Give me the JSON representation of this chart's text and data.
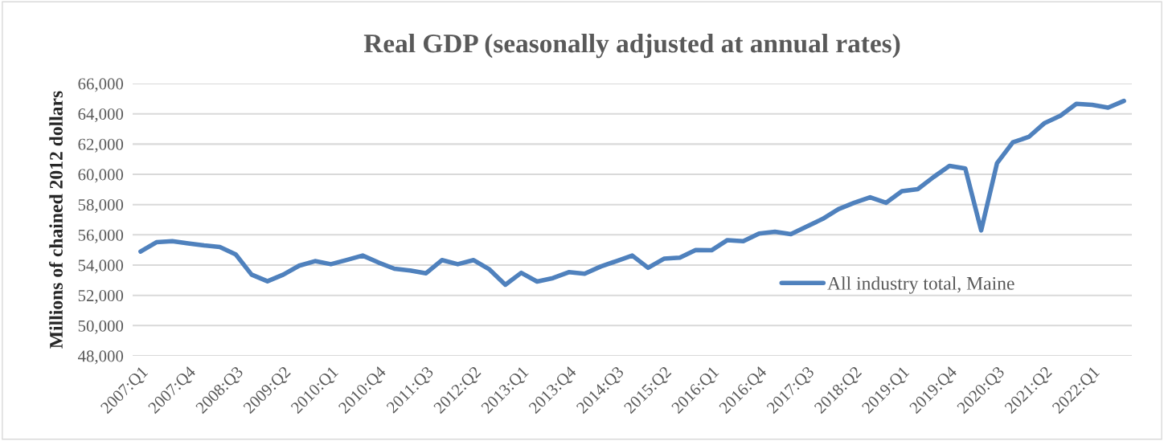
{
  "chart_data": {
    "type": "line",
    "title": "Real GDP (seasonally adjusted at annual rates)",
    "ylabel": "Millions of chained 2012 dollars",
    "categories": [
      "2007:Q1",
      null,
      null,
      "2007:Q4",
      null,
      null,
      "2008:Q3",
      null,
      null,
      "2009:Q2",
      null,
      null,
      "2010:Q1",
      null,
      null,
      "2010:Q4",
      null,
      null,
      "2011:Q3",
      null,
      null,
      "2012:Q2",
      null,
      null,
      "2013:Q1",
      null,
      null,
      "2013:Q4",
      null,
      null,
      "2014:Q3",
      null,
      null,
      "2015:Q2",
      null,
      null,
      "2016:Q1",
      null,
      null,
      "2016:Q4",
      null,
      null,
      "2017:Q3",
      null,
      null,
      "2018:Q2",
      null,
      null,
      "2019:Q1",
      null,
      null,
      "2019:Q4",
      null,
      null,
      "2020:Q3",
      null,
      null,
      "2021:Q2",
      null,
      null,
      "2022:Q1",
      null,
      null
    ],
    "series": [
      {
        "name": "All industry total, Maine",
        "color": "#4f81bd",
        "values": [
          54900,
          55510,
          55580,
          55440,
          55300,
          55190,
          54700,
          53370,
          52930,
          53370,
          53960,
          54260,
          54060,
          54340,
          54630,
          54170,
          53760,
          53640,
          53460,
          54330,
          54060,
          54330,
          53710,
          52700,
          53490,
          52910,
          53140,
          53530,
          53430,
          53900,
          54260,
          54630,
          53820,
          54420,
          54490,
          55000,
          54980,
          55650,
          55580,
          56090,
          56200,
          56040,
          56550,
          57050,
          57700,
          58120,
          58480,
          58120,
          58880,
          59020,
          59820,
          60560,
          60380,
          56290,
          60740,
          62120,
          62470,
          63390,
          63880,
          64660,
          64590,
          64410,
          64850
        ]
      }
    ],
    "ylim": [
      48000,
      66000
    ],
    "yticks": [
      {
        "value": 48000,
        "label": "48,000"
      },
      {
        "value": 50000,
        "label": "50,000"
      },
      {
        "value": 52000,
        "label": "52,000"
      },
      {
        "value": 54000,
        "label": "54,000"
      },
      {
        "value": 56000,
        "label": "56,000"
      },
      {
        "value": 58000,
        "label": "58,000"
      },
      {
        "value": 60000,
        "label": "60,000"
      },
      {
        "value": 62000,
        "label": "62,000"
      },
      {
        "value": 64000,
        "label": "64,000"
      },
      {
        "value": 66000,
        "label": "66,000"
      }
    ],
    "grid": "y",
    "legend": "right",
    "marker": "none",
    "line_style": "solid"
  }
}
